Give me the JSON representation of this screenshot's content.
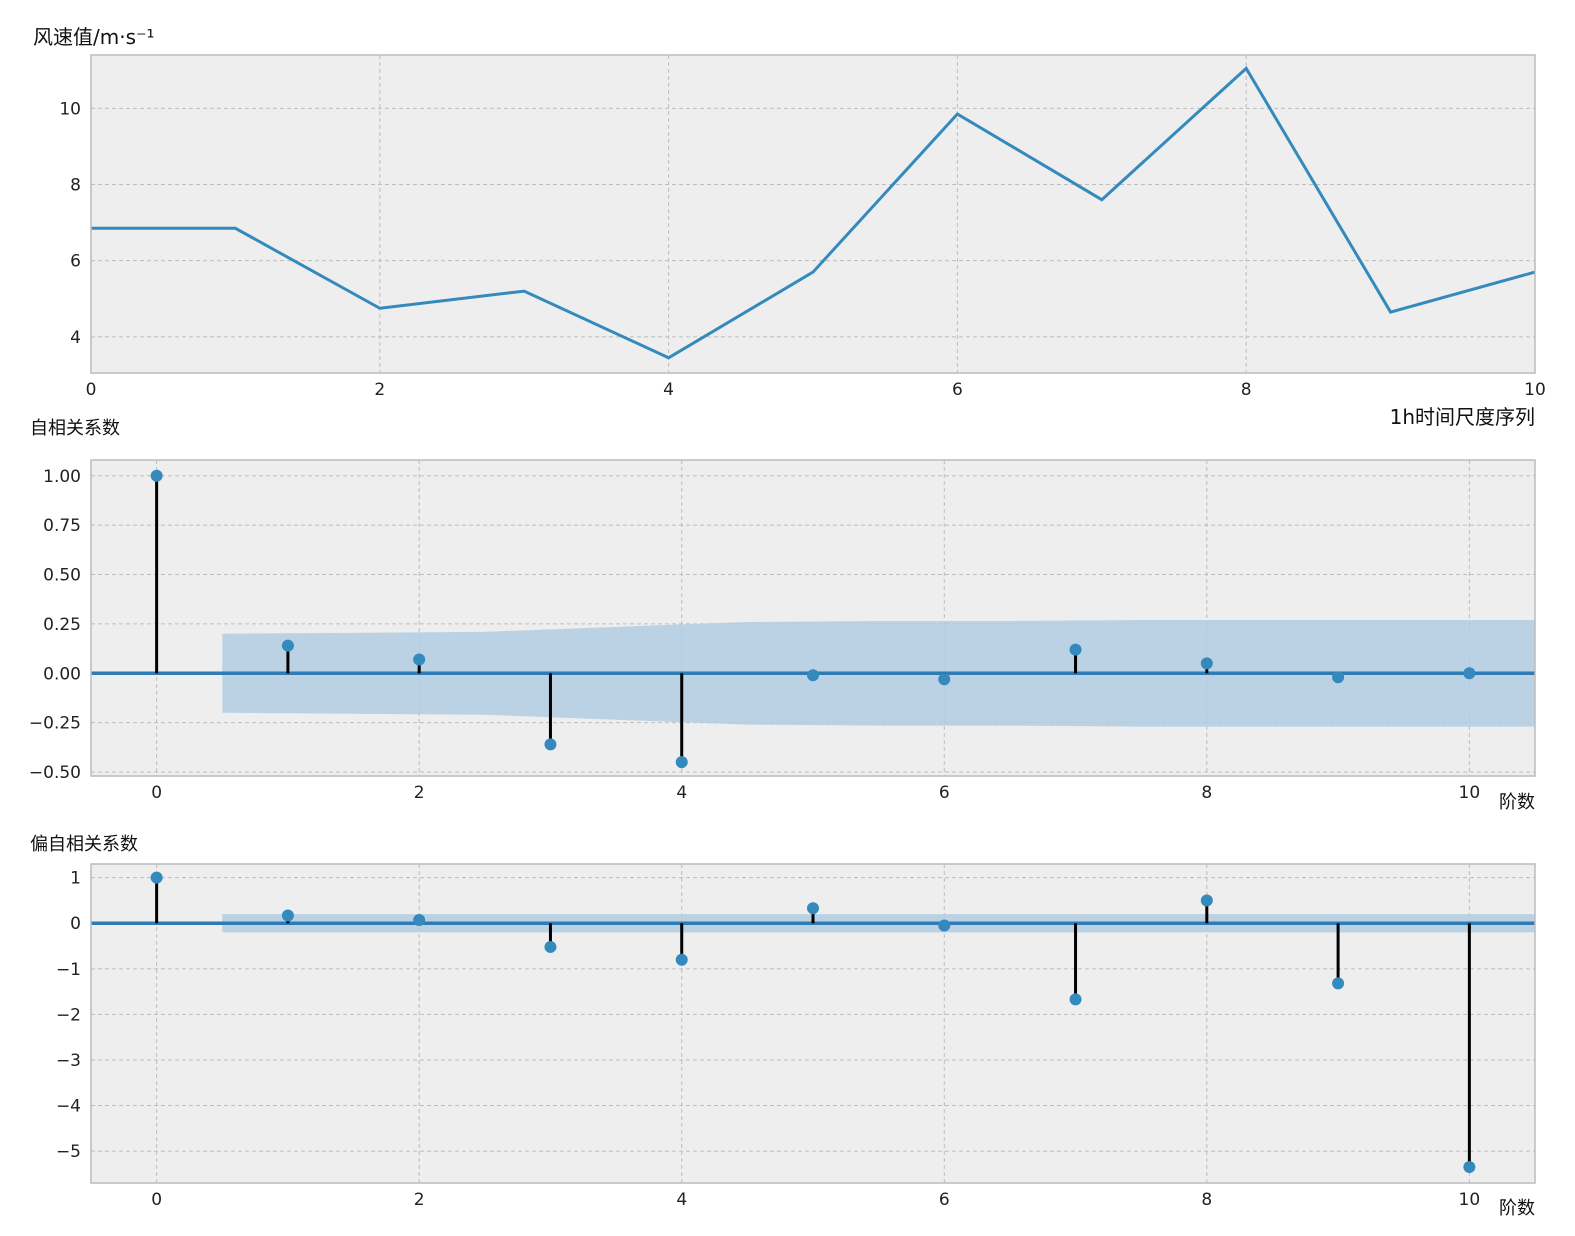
{
  "chart_data": [
    {
      "type": "line",
      "xlabel": "1h时间尺度序列",
      "ylabel": "风速值/m·s⁻¹",
      "xlim": [
        0,
        10
      ],
      "ylim": [
        3.05,
        11.4
      ],
      "x_ticks": [
        0,
        2,
        4,
        6,
        8,
        10
      ],
      "y_ticks": [
        4,
        6,
        8,
        10
      ],
      "grid": true,
      "x": [
        0,
        1,
        2,
        3,
        4,
        5,
        6,
        7,
        8,
        9,
        10
      ],
      "series": [
        {
          "values": [
            6.85,
            6.85,
            4.75,
            5.2,
            3.45,
            5.7,
            9.85,
            7.6,
            11.05,
            4.65,
            5.7
          ],
          "color": "#348abd"
        }
      ]
    },
    {
      "type": "stem",
      "xlabel": "阶数",
      "ylabel": "自相关系数",
      "xlim": [
        -0.5,
        10.5
      ],
      "ylim": [
        -0.52,
        1.08
      ],
      "x_ticks": [
        0,
        2,
        4,
        6,
        8,
        10
      ],
      "y_ticks": [
        1.0,
        0.75,
        0.5,
        0.25,
        0.0,
        -0.25,
        -0.5
      ],
      "y_tick_labels": [
        "1.00",
        "0.75",
        "0.50",
        "0.25",
        "0.00",
        "−0.25",
        "−0.50"
      ],
      "grid": true,
      "x": [
        0,
        1,
        2,
        3,
        4,
        5,
        6,
        7,
        8,
        9,
        10
      ],
      "values": [
        1.0,
        0.14,
        0.07,
        -0.36,
        -0.45,
        -0.01,
        -0.03,
        0.12,
        0.05,
        -0.02,
        0.0
      ],
      "confidence_band": {
        "x": [
          0.5,
          1.5,
          2.5,
          3.5,
          4.5,
          5.5,
          6.5,
          7.5,
          8.5,
          9.5,
          10.5
        ],
        "upper": [
          0.2,
          0.205,
          0.21,
          0.235,
          0.26,
          0.265,
          0.265,
          0.27,
          0.27,
          0.27,
          0.27
        ],
        "lower": [
          -0.2,
          -0.205,
          -0.21,
          -0.235,
          -0.26,
          -0.265,
          -0.265,
          -0.27,
          -0.27,
          -0.27,
          -0.27
        ],
        "color": "#b0cde0"
      },
      "marker_color": "#348abd",
      "stem_color": "#000000"
    },
    {
      "type": "stem",
      "xlabel": "阶数",
      "ylabel": "偏自相关系数",
      "xlim": [
        -0.5,
        10.5
      ],
      "ylim": [
        -5.7,
        1.3
      ],
      "x_ticks": [
        0,
        2,
        4,
        6,
        8,
        10
      ],
      "y_ticks": [
        1,
        0,
        -1,
        -2,
        -3,
        -4,
        -5
      ],
      "y_tick_labels": [
        "1",
        "0",
        "−1",
        "−2",
        "−3",
        "−4",
        "−5"
      ],
      "grid": true,
      "x": [
        0,
        1,
        2,
        3,
        4,
        5,
        6,
        7,
        8,
        9,
        10
      ],
      "values": [
        1.0,
        0.17,
        0.07,
        -0.52,
        -0.8,
        0.33,
        -0.05,
        -1.67,
        0.5,
        -1.32,
        -5.35
      ],
      "confidence_band": {
        "x": [
          0.5,
          10.5
        ],
        "upper": [
          0.2,
          0.2
        ],
        "lower": [
          -0.2,
          -0.2
        ],
        "color": "#b0cde0"
      },
      "marker_color": "#348abd",
      "stem_color": "#000000"
    }
  ]
}
